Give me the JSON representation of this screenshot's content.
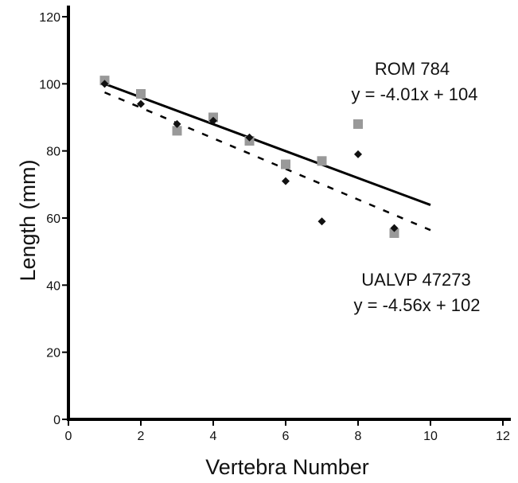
{
  "chart_data": {
    "type": "scatter",
    "title": "",
    "xlabel": "Vertebra Number",
    "ylabel": "Length (mm)",
    "xlim": [
      0,
      12
    ],
    "ylim": [
      0,
      120
    ],
    "xticks": [
      0,
      2,
      4,
      6,
      8,
      10,
      12
    ],
    "yticks": [
      0,
      20,
      40,
      60,
      80,
      100,
      120
    ],
    "grid": false,
    "series": [
      {
        "marker": "square",
        "color": "#999999",
        "x": [
          1,
          2,
          3,
          4,
          5,
          6,
          7,
          8,
          9
        ],
        "y": [
          101,
          97,
          86,
          90,
          83,
          76,
          77,
          88,
          55.5
        ]
      },
      {
        "marker": "diamond",
        "color": "#111111",
        "x": [
          1,
          2,
          3,
          4,
          5,
          6,
          7,
          8,
          9
        ],
        "y": [
          100,
          94,
          88,
          89,
          84,
          71,
          59,
          79,
          57
        ]
      }
    ],
    "trendlines": [
      {
        "style": "solid",
        "slope": -4.01,
        "intercept": 104,
        "x_range": [
          1,
          10
        ]
      },
      {
        "style": "dashed",
        "slope": -4.56,
        "intercept": 102,
        "x_range": [
          1,
          10
        ]
      }
    ],
    "annotations": [
      {
        "id": "rom",
        "name": "ROM 784",
        "equation": "y = -4.01x + 104"
      },
      {
        "id": "ualvp",
        "name": "UALVP 47273",
        "equation": "y = -4.56x + 102"
      }
    ]
  }
}
